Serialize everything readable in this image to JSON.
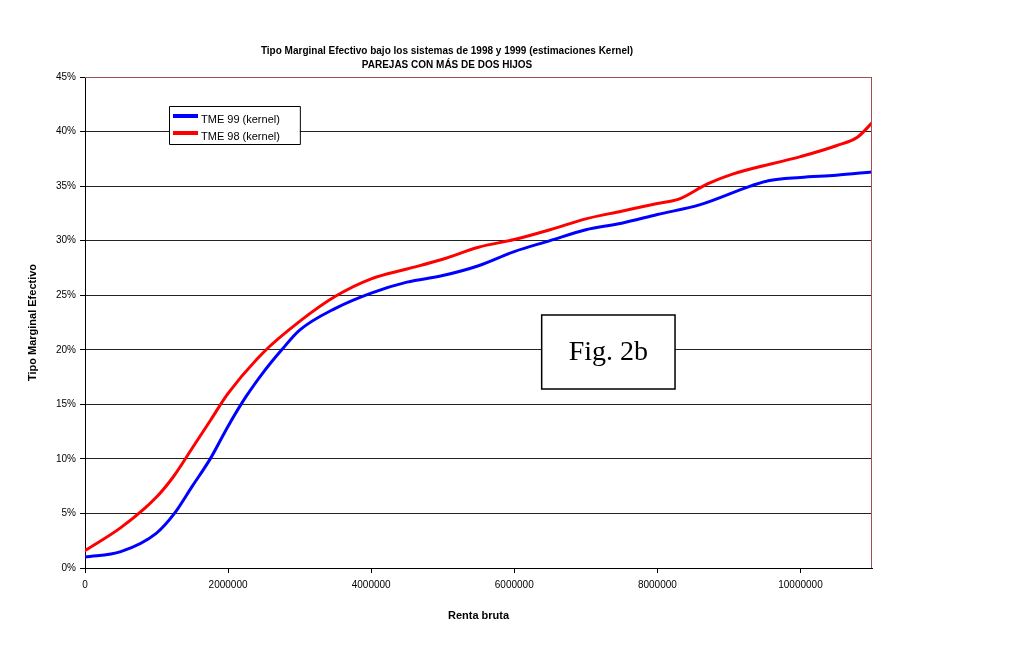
{
  "chart_data": {
    "type": "line",
    "title": "Tipo Marginal Efectivo bajo los sistemas de 1998 y 1999 (estimaciones Kernel)",
    "subtitle": "PAREJAS CON MÁS DE DOS HIJOS",
    "xlabel": "Renta bruta",
    "ylabel": "Tipo Marginal Efectivo",
    "series": [
      {
        "name": "TME 99 (kernel)",
        "color": "#0000ff",
        "x": [
          0,
          500000,
          1000000,
          1250000,
          1500000,
          1750000,
          2000000,
          2250000,
          2500000,
          2750000,
          3000000,
          3500000,
          4000000,
          4500000,
          5000000,
          5500000,
          6000000,
          6500000,
          7000000,
          7500000,
          8000000,
          8600000,
          9300000,
          9550000,
          10000000,
          10500000,
          11000000
        ],
        "values": [
          1.0,
          1.5,
          3.2,
          5.0,
          7.5,
          10.0,
          13.0,
          15.7,
          18.0,
          20.0,
          21.8,
          23.8,
          25.2,
          26.2,
          26.8,
          27.7,
          29.0,
          30.0,
          31.0,
          31.6,
          32.4,
          33.3,
          35.0,
          35.5,
          35.8,
          36.0,
          36.3
        ]
      },
      {
        "name": "TME 98 (kernel)",
        "color": "#ff0000",
        "x": [
          0,
          500000,
          1000000,
          1250000,
          1500000,
          1750000,
          2000000,
          2500000,
          3000000,
          3500000,
          4000000,
          4500000,
          5000000,
          5500000,
          6000000,
          6500000,
          7000000,
          7500000,
          8000000,
          8300000,
          8700000,
          9050000,
          10000000,
          10500000,
          10800000,
          11000000
        ],
        "values": [
          1.6,
          3.7,
          6.5,
          8.5,
          11.0,
          13.5,
          16.0,
          19.8,
          22.6,
          24.9,
          26.5,
          27.4,
          28.3,
          29.4,
          30.1,
          31.0,
          32.0,
          32.7,
          33.4,
          33.8,
          35.2,
          36.1,
          37.7,
          38.7,
          39.5,
          40.8
        ]
      }
    ],
    "xlim": [
      0,
      11000000
    ],
    "xticks": [
      0,
      2000000,
      4000000,
      6000000,
      8000000,
      10000000
    ],
    "ylim": [
      0,
      45
    ],
    "yticks": [
      {
        "value": 0,
        "label": "0%"
      },
      {
        "value": 5,
        "label": "5%"
      },
      {
        "value": 10,
        "label": "10%"
      },
      {
        "value": 15,
        "label": "15%"
      },
      {
        "value": 20,
        "label": "20%"
      },
      {
        "value": 25,
        "label": "25%"
      },
      {
        "value": 30,
        "label": "30%"
      },
      {
        "value": 35,
        "label": "35%"
      },
      {
        "value": 40,
        "label": "40%"
      },
      {
        "value": 45,
        "label": "45%"
      }
    ],
    "grid": "y",
    "legend": "top left",
    "marker": "none",
    "line_style": "solid",
    "annotations": [
      "Fig. 2b"
    ]
  }
}
